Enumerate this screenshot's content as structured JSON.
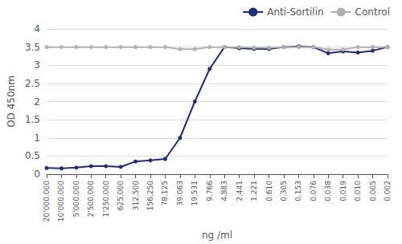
{
  "chart_data": {
    "type": "line",
    "categories": [
      "20'000.000",
      "10'000.000",
      "5'000.000",
      "2'500.000",
      "1'250.000",
      "625.000",
      "312.500",
      "156.250",
      "78.125",
      "39.063",
      "19.531",
      "9.766",
      "4.883",
      "2.441",
      "1.221",
      "0.610",
      "0.305",
      "0.153",
      "0.076",
      "0.038",
      "0.019",
      "0.010",
      "0.005",
      "0.002"
    ],
    "series": [
      {
        "name": "Anti-Sortilin",
        "color": "#1f2d7b",
        "marker": "circle",
        "values": [
          0.17,
          0.16,
          0.18,
          0.22,
          0.22,
          0.2,
          0.35,
          0.38,
          0.42,
          1.0,
          2.0,
          2.9,
          3.5,
          3.47,
          3.45,
          3.45,
          3.5,
          3.52,
          3.5,
          3.33,
          3.38,
          3.35,
          3.4,
          3.5
        ]
      },
      {
        "name": "Control",
        "color": "#b0b0b0",
        "marker": "circle",
        "values": [
          3.5,
          3.5,
          3.5,
          3.5,
          3.5,
          3.5,
          3.5,
          3.5,
          3.5,
          3.44,
          3.44,
          3.5,
          3.5,
          3.5,
          3.48,
          3.48,
          3.5,
          3.5,
          3.5,
          3.43,
          3.43,
          3.5,
          3.5,
          3.5
        ]
      }
    ],
    "xlabel": "ng /ml",
    "ylabel": "OD 450nm",
    "ylim": [
      0,
      4
    ],
    "yticks": [
      0,
      0.5,
      1,
      1.5,
      2,
      2.5,
      3,
      3.5,
      4
    ],
    "grid": true,
    "legend": "upper right"
  }
}
